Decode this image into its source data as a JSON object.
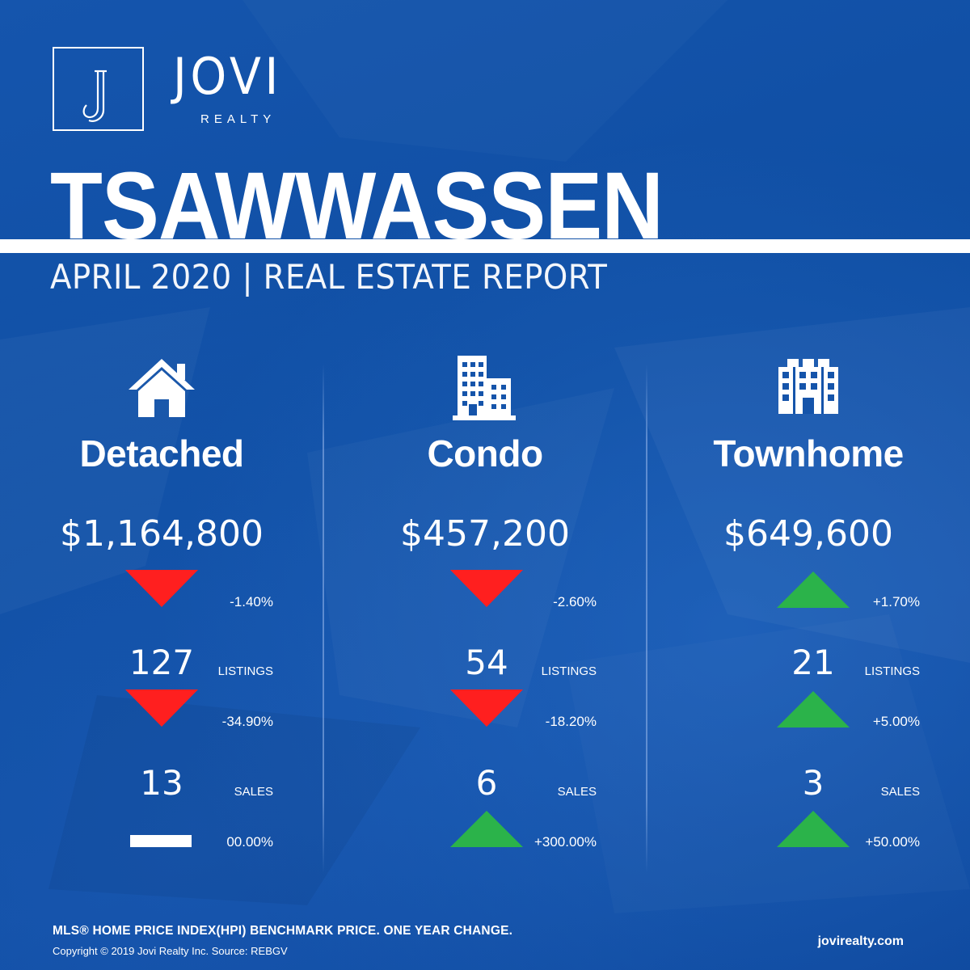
{
  "brand": {
    "name": "JOVI",
    "sub": "REALTY",
    "monogram": "J"
  },
  "report": {
    "city": "TSAWWASSEN",
    "subtitle": "APRIL 2020 | REAL ESTATE REPORT"
  },
  "colors": {
    "background": "#0f4fa4",
    "down": "#ff1f1f",
    "up": "#2bb34a",
    "flat": "#ffffff"
  },
  "categories": [
    {
      "icon": "house-icon",
      "title": "Detached",
      "price": "$1,164,800",
      "price_change": {
        "direction": "down",
        "value": "-1.40%"
      },
      "listings": {
        "count": "127",
        "label": "LISTINGS",
        "direction": "down",
        "change": "-34.90%"
      },
      "sales": {
        "count": "13",
        "label": "SALES",
        "direction": "flat",
        "change": "00.00%"
      }
    },
    {
      "icon": "condo-building-icon",
      "title": "Condo",
      "price": "$457,200",
      "price_change": {
        "direction": "down",
        "value": "-2.60%"
      },
      "listings": {
        "count": "54",
        "label": "LISTINGS",
        "direction": "down",
        "change": "-18.20%"
      },
      "sales": {
        "count": "6",
        "label": "SALES",
        "direction": "up",
        "change": "+300.00%"
      }
    },
    {
      "icon": "townhome-building-icon",
      "title": "Townhome",
      "price": "$649,600",
      "price_change": {
        "direction": "up",
        "value": "+1.70%"
      },
      "listings": {
        "count": "21",
        "label": "LISTINGS",
        "direction": "up",
        "change": "+5.00%"
      },
      "sales": {
        "count": "3",
        "label": "SALES",
        "direction": "up",
        "change": "+50.00%"
      }
    }
  ],
  "footer": {
    "index_note": "MLS® HOME PRICE INDEX(HPI) BENCHMARK PRICE. ONE YEAR CHANGE.",
    "copyright": "Copyright © 2019 Jovi Realty Inc. Source: REBGV",
    "website": "jovirealty.com"
  }
}
